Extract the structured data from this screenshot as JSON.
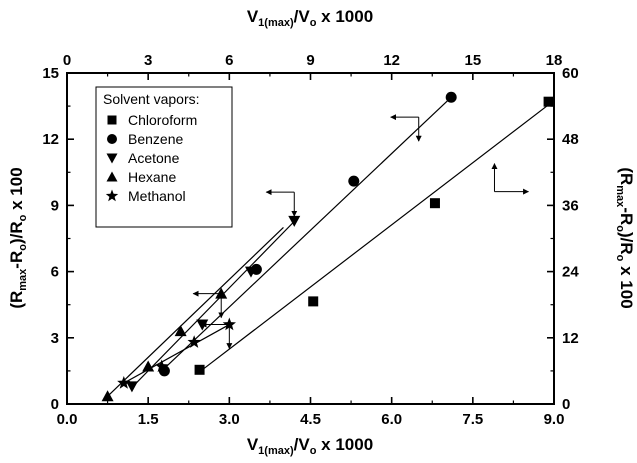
{
  "chart_data": {
    "type": "scatter",
    "x_axis_bottom": {
      "label_main": "V",
      "label_sub": "1(max)",
      "label_rest": "/V",
      "label_sub2": "o",
      "label_tail": " x 1000",
      "ticks": [
        "0.0",
        "1.5",
        "3.0",
        "4.5",
        "6.0",
        "7.5",
        "9.0"
      ],
      "range": [
        0,
        9
      ]
    },
    "x_axis_top": {
      "label_main": "V",
      "label_sub": "1(max)",
      "label_rest": "/V",
      "label_sub2": "o",
      "label_tail": " x 1000",
      "ticks": [
        "0",
        "3",
        "6",
        "9",
        "12",
        "15",
        "18"
      ],
      "range": [
        0,
        18
      ]
    },
    "y_axis_left": {
      "label_a": "(R",
      "label_sub": "max",
      "label_b": "-R",
      "label_sub2": "o",
      "label_c": ")/R",
      "label_sub3": "o",
      "label_d": " x 100",
      "ticks": [
        "0",
        "3",
        "6",
        "9",
        "12",
        "15"
      ],
      "range": [
        0,
        15
      ]
    },
    "y_axis_right": {
      "label_a": "(R",
      "label_sub": "max",
      "label_b": "-R",
      "label_sub2": "o",
      "label_c": ")/R",
      "label_sub3": "o",
      "label_d": " x 100",
      "ticks": [
        "0",
        "12",
        "24",
        "36",
        "48",
        "60"
      ],
      "range": [
        0,
        60
      ]
    },
    "legend": {
      "title": "Solvent vapors:",
      "placement": "top-left"
    },
    "series": [
      {
        "name": "Chloroform",
        "marker": "square",
        "axes": "top-right",
        "points": [
          [
            4.9,
            6.2
          ],
          [
            9.1,
            18.6
          ],
          [
            13.6,
            36.4
          ],
          [
            17.8,
            54.8
          ]
        ]
      },
      {
        "name": "Benzene",
        "marker": "circle",
        "axes": "bottom-left",
        "points": [
          [
            1.8,
            1.5
          ],
          [
            3.5,
            6.1
          ],
          [
            5.3,
            10.1
          ],
          [
            7.1,
            13.9
          ]
        ]
      },
      {
        "name": "Acetone",
        "marker": "triangle-down",
        "axes": "bottom-left",
        "points": [
          [
            1.2,
            0.8
          ],
          [
            2.5,
            3.6
          ],
          [
            3.4,
            6.0
          ],
          [
            4.2,
            8.3
          ]
        ]
      },
      {
        "name": "Hexane",
        "marker": "triangle-up",
        "axes": "bottom-left",
        "points": [
          [
            0.75,
            0.35
          ],
          [
            1.5,
            1.7
          ],
          [
            2.1,
            3.3
          ],
          [
            2.85,
            5.0
          ]
        ]
      },
      {
        "name": "Methanol",
        "marker": "star",
        "axes": "bottom-left",
        "points": [
          [
            1.05,
            0.95
          ],
          [
            1.75,
            1.7
          ],
          [
            2.35,
            2.8
          ],
          [
            3.0,
            3.6
          ]
        ]
      }
    ],
    "fit_lines": [
      {
        "series": "Chloroform",
        "axes": "top-right",
        "from": [
          5.0,
          6.2
        ],
        "to": [
          18.0,
          55.0
        ]
      },
      {
        "series": "Benzene",
        "axes": "bottom-left",
        "from": [
          1.75,
          1.5
        ],
        "to": [
          7.1,
          13.9
        ]
      },
      {
        "series": "Acetone",
        "axes": "bottom-left",
        "from": [
          1.2,
          0.75
        ],
        "to": [
          4.25,
          8.4
        ]
      },
      {
        "series": "Hexane",
        "axes": "bottom-left",
        "from": [
          0.75,
          0.35
        ],
        "to": [
          4.0,
          8.0
        ]
      },
      {
        "series": "Methanol",
        "axes": "bottom-left",
        "from": [
          1.05,
          0.95
        ],
        "to": [
          3.0,
          3.6
        ]
      }
    ],
    "axis_indicators": [
      {
        "axes": "bottom-left",
        "at": [
          6.5,
          13.0
        ],
        "horizontal": "left",
        "vertical": "down"
      },
      {
        "axes": "bottom-left",
        "at": [
          4.2,
          9.6
        ],
        "horizontal": "left",
        "vertical": "down"
      },
      {
        "axes": "bottom-left",
        "at": [
          2.85,
          5.0
        ],
        "horizontal": "left",
        "vertical": "down"
      },
      {
        "axes": "bottom-left",
        "at": [
          3.0,
          3.6
        ],
        "horizontal": "left",
        "vertical": "down"
      },
      {
        "axes": "top-right",
        "at": [
          15.8,
          38.5
        ],
        "horizontal": "right",
        "vertical": "up"
      }
    ],
    "grid": false
  }
}
